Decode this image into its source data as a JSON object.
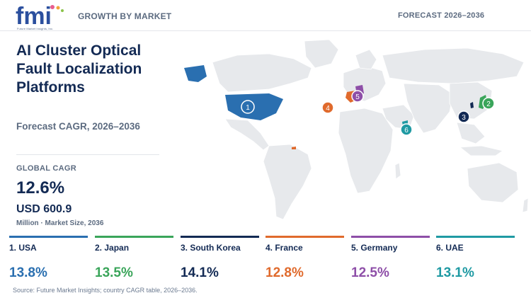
{
  "header": {
    "logo_text": "fmi",
    "logo_subtext": "Future Market Insights, Inc.",
    "section_label": "GROWTH BY MARKET",
    "forecast_label": "FORECAST 2026–2036"
  },
  "summary": {
    "title": "AI Cluster Optical Fault Localization Platforms",
    "subtitle": "Forecast CAGR, 2026–2036",
    "cagr_label": "GLOBAL CAGR",
    "cagr_value": "12.6%",
    "market_size": "USD 600.9",
    "market_size_caption": "Million · Market Size, 2036"
  },
  "markers": [
    {
      "rank": "1",
      "country": "USA",
      "color": "#2a6fb0"
    },
    {
      "rank": "2",
      "country": "Japan",
      "color": "#3aa55a"
    },
    {
      "rank": "3",
      "country": "South Korea",
      "color": "#132a54"
    },
    {
      "rank": "4",
      "country": "France",
      "color": "#e06a2c"
    },
    {
      "rank": "5",
      "country": "Germany",
      "color": "#8e4fa8"
    },
    {
      "rank": "6",
      "country": "UAE",
      "color": "#1f9aa3"
    }
  ],
  "countries": [
    {
      "label": "1. USA",
      "cagr": "13.8%",
      "color": "#2a6fb0"
    },
    {
      "label": "2. Japan",
      "cagr": "13.5%",
      "color": "#3aa55a"
    },
    {
      "label": "3. South Korea",
      "cagr": "14.1%",
      "color": "#132a54"
    },
    {
      "label": "4. France",
      "cagr": "12.8%",
      "color": "#e06a2c"
    },
    {
      "label": "5. Germany",
      "cagr": "12.5%",
      "color": "#8e4fa8"
    },
    {
      "label": "6. UAE",
      "cagr": "13.1%",
      "color": "#1f9aa3"
    }
  ],
  "footer": {
    "source": "Source: Future Market Insights; country CAGR table, 2026–2036."
  }
}
